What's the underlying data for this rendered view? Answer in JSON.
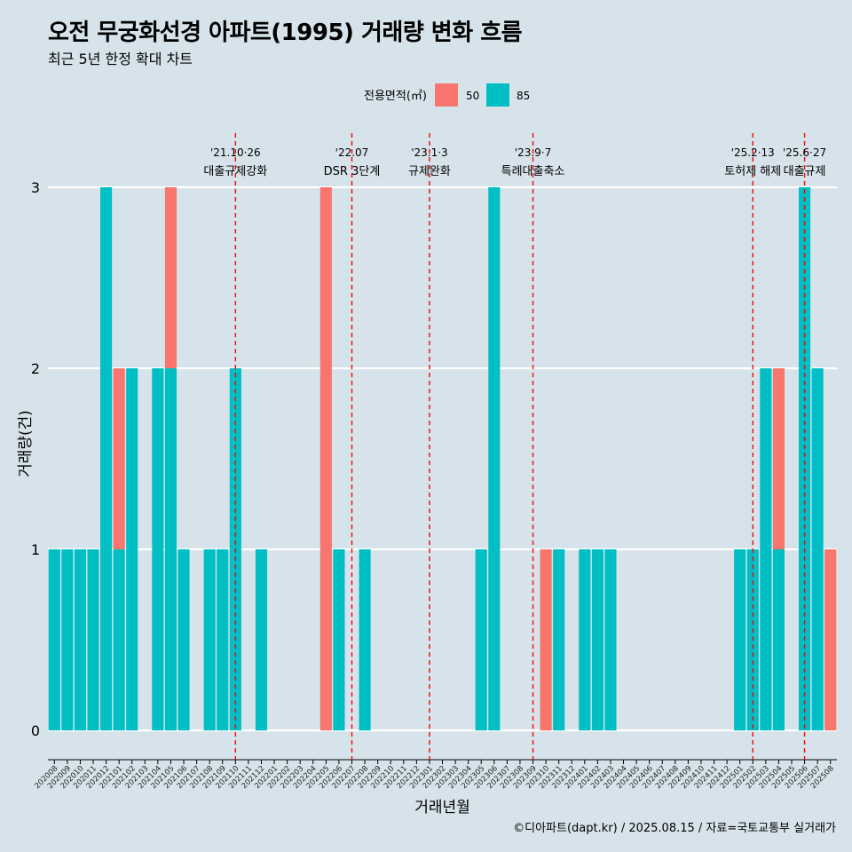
{
  "title": "오전 무궁화선경 아파트(1995) 거래량 변화 흐름",
  "subtitle": "최근 5년 한정 확대 차트",
  "caption": "©디아파트(dapt.kr) / 2025.08.15 / 자료=국토교통부 실거래가",
  "colors": {
    "background": "#d6e3ea",
    "s50": "#f8766d",
    "s85": "#00bfc4",
    "event_line": "#ff0000"
  },
  "chart_data": {
    "type": "bar",
    "stacked": true,
    "xlabel": "거래년월",
    "ylabel": "거래량(건)",
    "ylim": [
      0,
      3
    ],
    "yticks": [
      0,
      1,
      2,
      3
    ],
    "legend": {
      "title": "전용면적(㎡)",
      "position": "top"
    },
    "categories": [
      "202008",
      "202009",
      "202010",
      "202011",
      "202012",
      "202101",
      "202102",
      "202103",
      "202104",
      "202105",
      "202106",
      "202107",
      "202108",
      "202109",
      "202110",
      "202111",
      "202112",
      "202201",
      "202202",
      "202203",
      "202204",
      "202205",
      "202206",
      "202207",
      "202208",
      "202209",
      "202210",
      "202211",
      "202212",
      "202301",
      "202302",
      "202303",
      "202304",
      "202305",
      "202306",
      "202307",
      "202308",
      "202309",
      "202310",
      "202311",
      "202312",
      "202401",
      "202402",
      "202403",
      "202404",
      "202405",
      "202406",
      "202407",
      "202408",
      "202409",
      "202410",
      "202411",
      "202412",
      "202501",
      "202502",
      "202503",
      "202504",
      "202505",
      "202506",
      "202507",
      "202508"
    ],
    "series": [
      {
        "name": "50",
        "color": "#f8766d",
        "values": [
          0,
          0,
          0,
          0,
          0,
          1,
          0,
          0,
          0,
          1,
          0,
          0,
          0,
          0,
          0,
          0,
          0,
          0,
          0,
          0,
          0,
          3,
          0,
          0,
          0,
          0,
          0,
          0,
          0,
          0,
          0,
          0,
          0,
          0,
          0,
          0,
          0,
          0,
          1,
          0,
          0,
          0,
          0,
          0,
          0,
          0,
          0,
          0,
          0,
          0,
          0,
          0,
          0,
          0,
          0,
          0,
          1,
          0,
          0,
          0,
          1
        ]
      },
      {
        "name": "85",
        "color": "#00bfc4",
        "values": [
          1,
          1,
          1,
          1,
          3,
          1,
          2,
          0,
          2,
          2,
          1,
          0,
          1,
          1,
          2,
          0,
          1,
          0,
          0,
          0,
          0,
          0,
          1,
          0,
          1,
          0,
          0,
          0,
          0,
          0,
          0,
          0,
          0,
          1,
          3,
          0,
          0,
          0,
          0,
          1,
          0,
          1,
          1,
          1,
          0,
          0,
          0,
          0,
          0,
          0,
          0,
          0,
          0,
          1,
          1,
          2,
          1,
          0,
          3,
          2,
          0
        ]
      }
    ],
    "events": [
      {
        "category": "202110",
        "date": "'21.10·26",
        "label": "대출규제강화"
      },
      {
        "category": "202207",
        "date": "'22.07",
        "label": "DSR 3단계"
      },
      {
        "category": "202301",
        "date": "'23.1·3",
        "label": "규제완화"
      },
      {
        "category": "202309",
        "date": "'23.9·7",
        "label": "특례대출축소"
      },
      {
        "category": "202502",
        "date": "'25.2·13",
        "label": "토허제 해제"
      },
      {
        "category": "202506",
        "date": "'25.6·27",
        "label": "대출규제"
      }
    ]
  }
}
